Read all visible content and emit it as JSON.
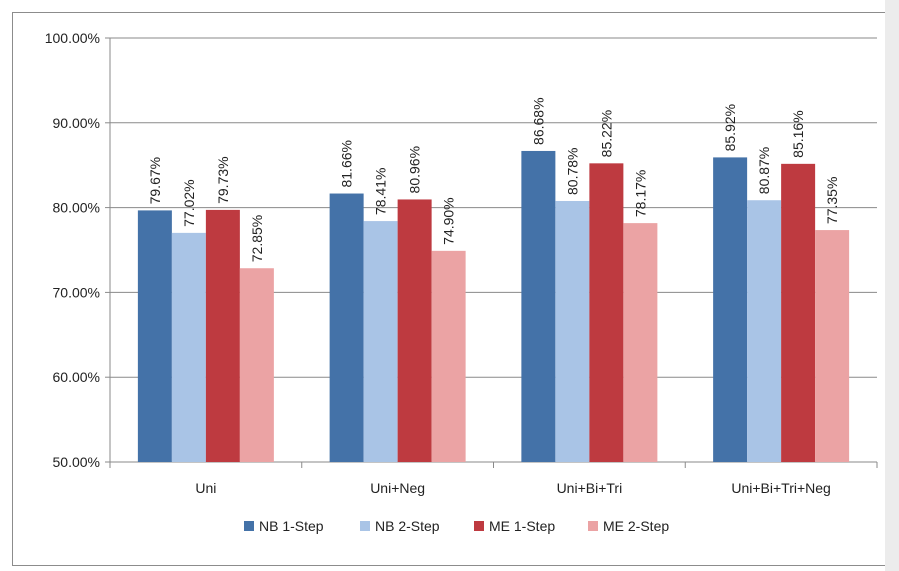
{
  "chart_data": {
    "type": "bar",
    "categories": [
      "Uni",
      "Uni+Neg",
      "Uni+Bi+Tri",
      "Uni+Bi+Tri+Neg"
    ],
    "series": [
      {
        "name": "NB 1-Step",
        "color": "#4472a8",
        "values": [
          79.67,
          81.66,
          86.68,
          85.92
        ],
        "labels": [
          "79.67%",
          "81.66%",
          "86.68%",
          "85.92%"
        ]
      },
      {
        "name": "NB 2-Step",
        "color": "#a9c4e6",
        "values": [
          77.02,
          78.41,
          80.78,
          80.87
        ],
        "labels": [
          "77.02%",
          "78.41%",
          "80.78%",
          "80.87%"
        ]
      },
      {
        "name": "ME 1-Step",
        "color": "#be3a40",
        "values": [
          79.73,
          80.96,
          85.22,
          85.16
        ],
        "labels": [
          "79.73%",
          "80.96%",
          "85.22%",
          "85.16%"
        ]
      },
      {
        "name": "ME 2-Step",
        "color": "#eba3a4",
        "values": [
          72.85,
          74.9,
          78.17,
          77.35
        ],
        "labels": [
          "72.85%",
          "74.90%",
          "78.17%",
          "77.35%"
        ]
      }
    ],
    "ylim": [
      50,
      100
    ],
    "yticks": [
      50,
      60,
      70,
      80,
      90,
      100
    ],
    "ytick_labels": [
      "50.00%",
      "60.00%",
      "70.00%",
      "80.00%",
      "90.00%",
      "100.00%"
    ],
    "grid": true,
    "legend_position": "bottom"
  }
}
